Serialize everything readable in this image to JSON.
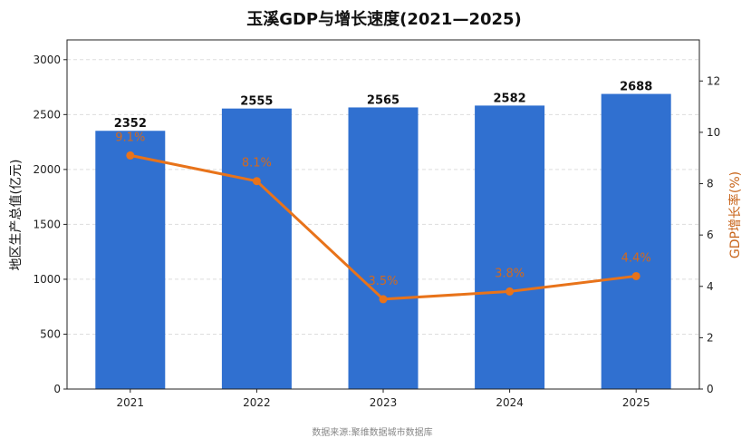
{
  "chart_data": {
    "type": "bar+line",
    "title": "玉溪GDP与增长速度(2021—2025)",
    "categories": [
      "2021",
      "2022",
      "2023",
      "2024",
      "2025"
    ],
    "series": [
      {
        "name": "地区生产总值(亿元)",
        "type": "bar",
        "axis": "left",
        "color": "#3070d0",
        "values": [
          2352,
          2555,
          2565,
          2582,
          2688
        ],
        "labels": [
          "2352",
          "2555",
          "2565",
          "2582",
          "2688"
        ]
      },
      {
        "name": "GDP增长率(%)",
        "type": "line",
        "axis": "right",
        "color": "#e8731a",
        "values": [
          9.1,
          8.1,
          3.5,
          3.8,
          4.4
        ],
        "labels": [
          "9.1%",
          "8.1%",
          "3.5%",
          "3.8%",
          "4.4%"
        ]
      }
    ],
    "ylabel_left": "地区生产总值(亿元)",
    "ylabel_right": "GDP增长率(%)",
    "ylim_left": [
      0,
      3180
    ],
    "yticks_left": [
      0,
      500,
      1000,
      1500,
      2000,
      2500,
      3000
    ],
    "ylim_right": [
      0,
      13.6
    ],
    "yticks_right": [
      0,
      2,
      4,
      6,
      8,
      10,
      12
    ],
    "grid": "horizontal dashed",
    "source": "数据来源:聚维数据城市数据库"
  }
}
